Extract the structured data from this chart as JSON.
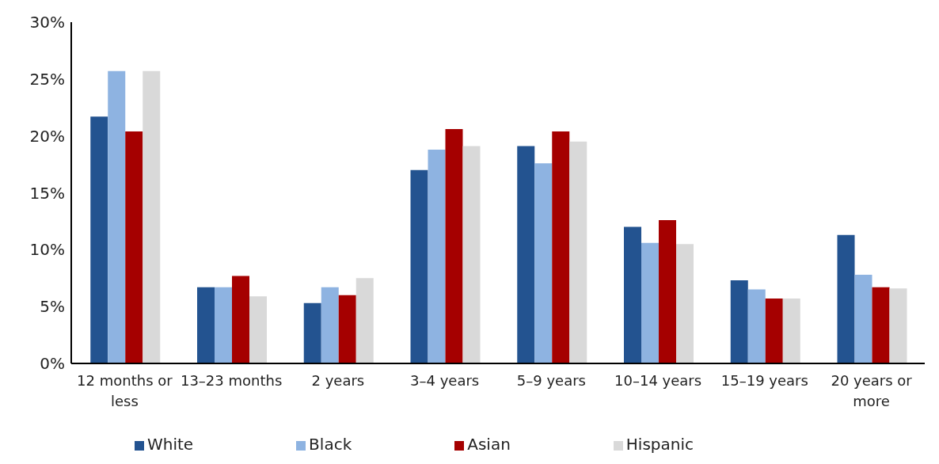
{
  "chart_data": {
    "type": "bar",
    "categories": [
      "12 months or less",
      "13–23 months",
      "2 years",
      "3–4 years",
      "5–9 years",
      "10–14 years",
      "15–19 years",
      "20 years or more"
    ],
    "series": [
      {
        "name": "White",
        "color": "#235390",
        "values": [
          21.7,
          6.7,
          5.3,
          17.0,
          19.1,
          12.0,
          7.3,
          11.3
        ]
      },
      {
        "name": "Black",
        "color": "#8eb3e1",
        "values": [
          25.7,
          6.7,
          6.7,
          18.8,
          17.6,
          10.6,
          6.5,
          7.8
        ]
      },
      {
        "name": "Asian",
        "color": "#a50000",
        "values": [
          20.4,
          7.7,
          6.0,
          20.6,
          20.4,
          12.6,
          5.7,
          6.7
        ]
      },
      {
        "name": "Hispanic",
        "color": "#d9d9d9",
        "values": [
          25.7,
          5.9,
          7.5,
          19.1,
          19.5,
          10.5,
          5.7,
          6.6
        ]
      }
    ],
    "ylim": [
      0,
      30
    ],
    "yticks": [
      {
        "value": 0,
        "label": "0%"
      },
      {
        "value": 5,
        "label": "5%"
      },
      {
        "value": 10,
        "label": "10%"
      },
      {
        "value": 15,
        "label": "15%"
      },
      {
        "value": 20,
        "label": "20%"
      },
      {
        "value": 25,
        "label": "25%"
      },
      {
        "value": 30,
        "label": "30%"
      }
    ],
    "grid": false,
    "legend": "bottom"
  }
}
